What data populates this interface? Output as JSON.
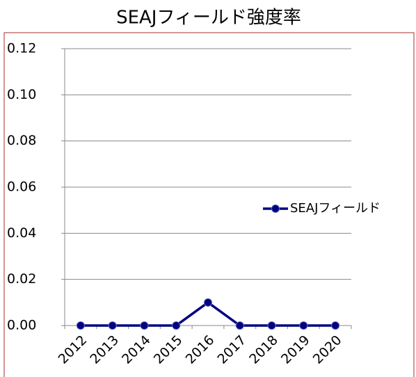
{
  "chart_data": {
    "type": "line",
    "title": "SEAJフィールド強度率",
    "categories": [
      "2012",
      "2013",
      "2014",
      "2015",
      "2016",
      "2017",
      "2018",
      "2019",
      "2020"
    ],
    "series": [
      {
        "name": "SEAJフィールド",
        "color": "#000080",
        "values": [
          0,
          0,
          0,
          0,
          0.01,
          0,
          0,
          0,
          0
        ]
      }
    ],
    "ylim": [
      0,
      0.12
    ],
    "yticks": [
      {
        "value": 0,
        "label": "0.00"
      },
      {
        "value": 0.02,
        "label": "0.02"
      },
      {
        "value": 0.04,
        "label": "0.04"
      },
      {
        "value": 0.06,
        "label": "0.06"
      },
      {
        "value": 0.08,
        "label": "0.08"
      },
      {
        "value": 0.1,
        "label": "0.10"
      },
      {
        "value": 0.12,
        "label": "0.12"
      }
    ],
    "grid": true,
    "legend": "right"
  }
}
